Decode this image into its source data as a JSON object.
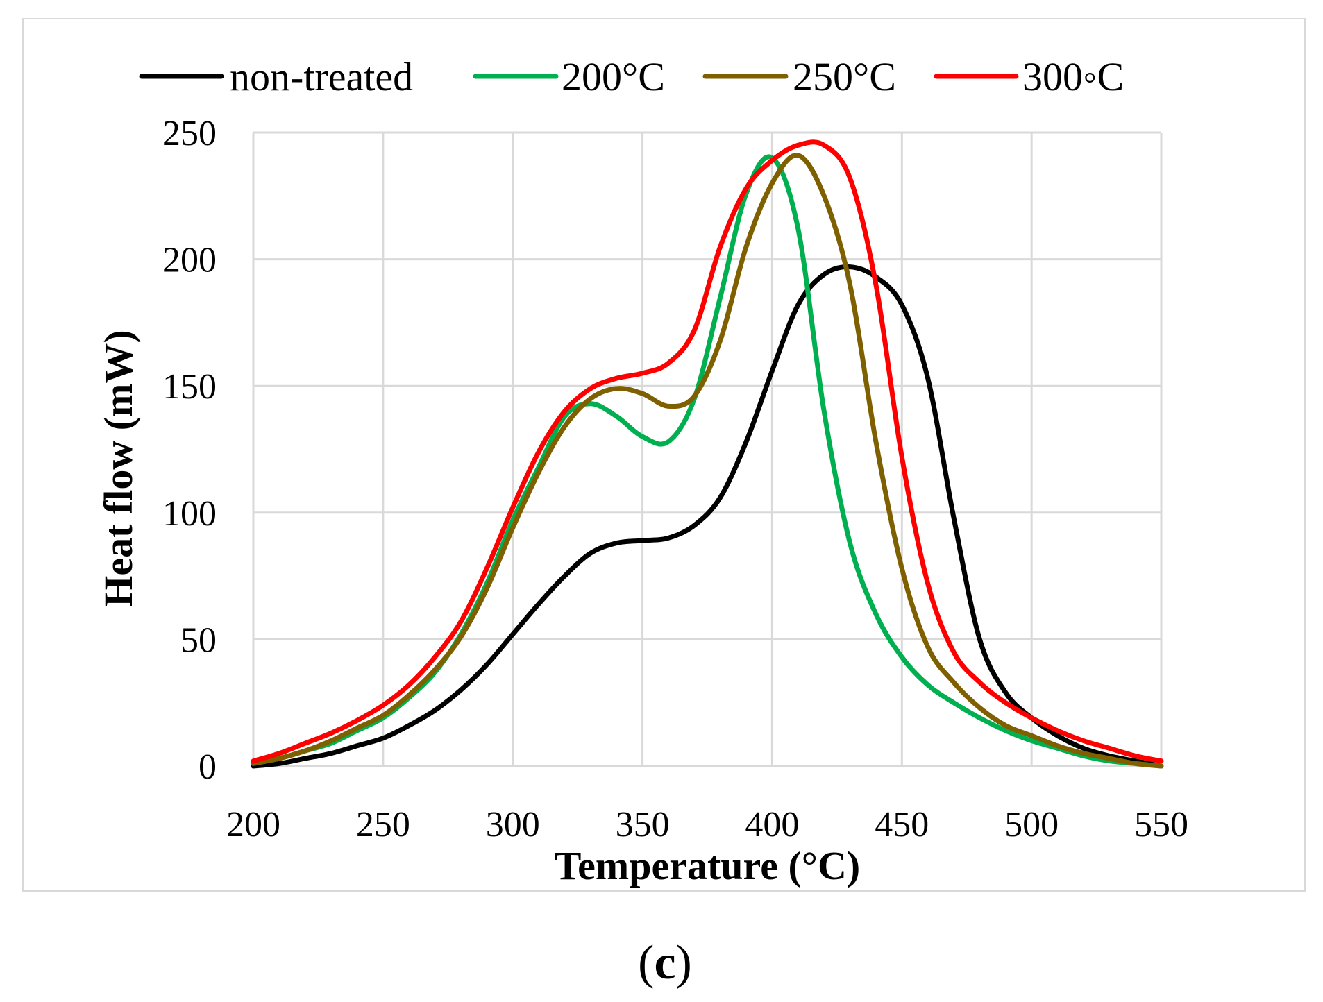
{
  "caption": {
    "open": "(",
    "label": "c",
    "close": ")"
  },
  "colors": {
    "grid": "#D9D9D9",
    "frame": "#D9D9D9"
  },
  "chart_data": {
    "type": "line",
    "title": "",
    "xlabel": "Temperature (°C)",
    "ylabel": "Heat flow (mW)",
    "xlim": [
      200,
      550
    ],
    "ylim": [
      0,
      250
    ],
    "x_ticks": [
      200,
      250,
      300,
      350,
      400,
      450,
      500,
      550
    ],
    "y_ticks": [
      0,
      50,
      100,
      150,
      200,
      250
    ],
    "grid": true,
    "legend_position": "top",
    "x": [
      200,
      210,
      220,
      230,
      240,
      250,
      260,
      270,
      280,
      290,
      300,
      310,
      320,
      330,
      340,
      350,
      360,
      370,
      380,
      390,
      400,
      410,
      420,
      430,
      440,
      450,
      460,
      470,
      480,
      490,
      500,
      510,
      520,
      530,
      540,
      550
    ],
    "series": [
      {
        "name": "non-treated",
        "color": "#000000",
        "values": [
          0,
          1,
          3,
          5,
          8,
          11,
          16,
          22,
          30,
          40,
          52,
          64,
          75,
          84,
          88,
          89,
          90,
          95,
          106,
          128,
          156,
          182,
          194,
          197,
          193,
          182,
          153,
          98,
          50,
          29,
          19,
          12,
          7,
          4,
          2,
          0
        ]
      },
      {
        "name": "200°C",
        "color": "#00B050",
        "values": [
          1,
          3,
          6,
          9,
          14,
          19,
          27,
          37,
          52,
          72,
          97,
          118,
          138,
          143,
          138,
          130,
          128,
          145,
          185,
          226,
          240,
          212,
          140,
          88,
          60,
          43,
          32,
          25,
          19,
          14,
          10,
          7,
          4,
          2,
          1,
          0
        ]
      },
      {
        "name": "250°C",
        "color": "#7F6000",
        "values": [
          1,
          3,
          6,
          10,
          15,
          20,
          28,
          38,
          51,
          70,
          94,
          116,
          134,
          145,
          149,
          147,
          142,
          146,
          168,
          205,
          230,
          241,
          225,
          190,
          128,
          78,
          47,
          33,
          23,
          16,
          12,
          8,
          5,
          3,
          1,
          0
        ]
      },
      {
        "name": "300◦C",
        "color": "#FF0000",
        "values": [
          2,
          5,
          9,
          13,
          18,
          24,
          32,
          43,
          57,
          78,
          102,
          124,
          140,
          149,
          153,
          155,
          159,
          172,
          205,
          228,
          239,
          245,
          245,
          232,
          190,
          122,
          72,
          45,
          33,
          25,
          19,
          14,
          10,
          7,
          4,
          2
        ]
      }
    ]
  }
}
